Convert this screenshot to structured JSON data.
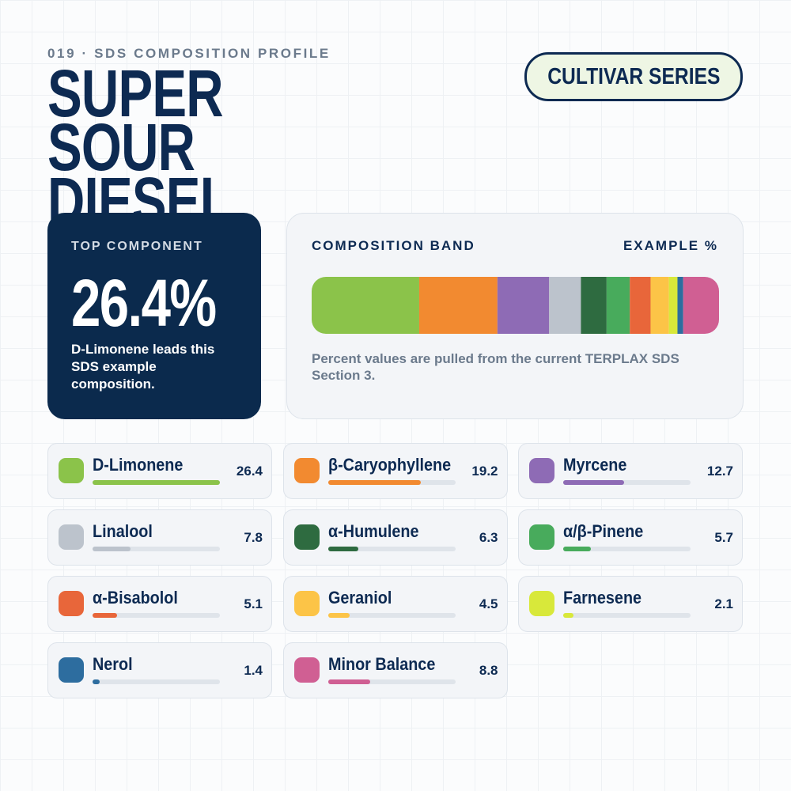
{
  "header": {
    "kicker": "019 · SDS COMPOSITION PROFILE",
    "title": "SUPER SOUR DIESEL",
    "badge": "CULTIVAR SERIES"
  },
  "top_component": {
    "label": "TOP COMPONENT",
    "value": "26.4%",
    "note": "D-Limonene leads this SDS example composition."
  },
  "band": {
    "label": "COMPOSITION BAND",
    "unit_label": "EXAMPLE %",
    "note": "Percent values are pulled from the current TERPLAX SDS Section 3."
  },
  "components": [
    {
      "name": "D-Limonene",
      "value": 26.4,
      "color": "#8bc34a"
    },
    {
      "name": "β-Caryophyllene",
      "value": 19.2,
      "color": "#f28a30"
    },
    {
      "name": "Myrcene",
      "value": 12.7,
      "color": "#8e6bb5"
    },
    {
      "name": "Linalool",
      "value": 7.8,
      "color": "#bcc3cc"
    },
    {
      "name": "α-Humulene",
      "value": 6.3,
      "color": "#2e6b40"
    },
    {
      "name": "α/β-Pinene",
      "value": 5.7,
      "color": "#48ab5c"
    },
    {
      "name": "α-Bisabolol",
      "value": 5.1,
      "color": "#e8663a"
    },
    {
      "name": "Geraniol",
      "value": 4.5,
      "color": "#fcc447"
    },
    {
      "name": "Farnesene",
      "value": 2.1,
      "color": "#d8e83a"
    },
    {
      "name": "Nerol",
      "value": 1.4,
      "color": "#2d6d9f"
    },
    {
      "name": "Minor Balance",
      "value": 8.8,
      "color": "#d05f93"
    }
  ]
}
